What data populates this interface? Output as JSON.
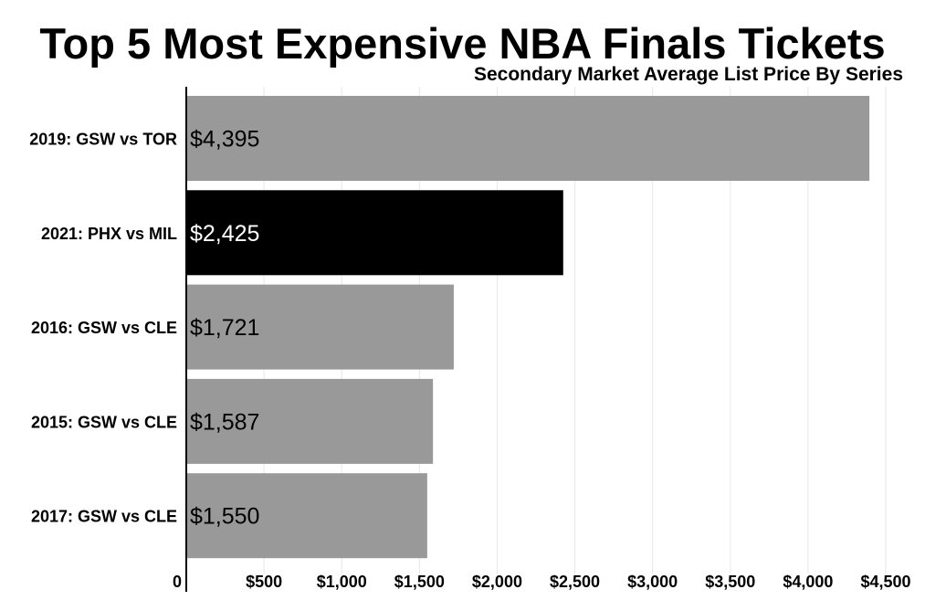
{
  "chart_data": {
    "type": "bar",
    "orientation": "horizontal",
    "title": "Top 5 Most Expensive NBA Finals Tickets",
    "subtitle": "Secondary Market Average List Price By Series",
    "categories": [
      "2019: GSW vs TOR",
      "2021: PHX vs MIL",
      "2016: GSW vs CLE",
      "2015: GSW vs CLE",
      "2017: GSW vs CLE"
    ],
    "values": [
      4395,
      2425,
      1721,
      1587,
      1550
    ],
    "data_labels": [
      "$4,395",
      "$2,425",
      "$1,721",
      "$1,587",
      "$1,550"
    ],
    "bar_colors": [
      "#999999",
      "#000000",
      "#999999",
      "#999999",
      "#999999"
    ],
    "label_colors": [
      "#000000",
      "#ffffff",
      "#000000",
      "#000000",
      "#000000"
    ],
    "xlim": [
      0,
      4500
    ],
    "x_ticks": [
      0,
      500,
      1000,
      1500,
      2000,
      2500,
      3000,
      3500,
      4000,
      4500
    ],
    "x_tick_labels": [
      "0",
      "$500",
      "$1,000",
      "$1,500",
      "$2,000",
      "$2,500",
      "$3,000",
      "$3,500",
      "$4,000",
      "$4,500"
    ],
    "xlabel": "",
    "ylabel": "",
    "grid": true,
    "legend": false
  }
}
